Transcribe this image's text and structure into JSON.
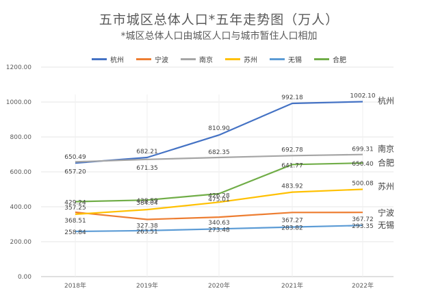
{
  "chart_data": {
    "type": "line",
    "title": "五市城区总体人口*五年走势图（万人）",
    "subtitle": "*城区总体人口由城区人口与城市暂住人口相加",
    "categories": [
      "2018年",
      "2019年",
      "2020年",
      "2021年",
      "2022年"
    ],
    "ylim": [
      0,
      1200
    ],
    "yticks": [
      "0.00",
      "200.00",
      "400.00",
      "600.00",
      "800.00",
      "1000.00",
      "1200.00"
    ],
    "ytick_values": [
      0,
      200,
      400,
      600,
      800,
      1000,
      1200
    ],
    "grid": true,
    "legend_position": "top",
    "series": [
      {
        "name": "杭州",
        "color": "#4472C4",
        "values": [
          650.49,
          682.21,
          810.9,
          992.18,
          1002.1
        ],
        "labels": [
          "650.49",
          "682.21",
          "810.90",
          "992.18",
          "1002.10"
        ],
        "end_label": "杭州"
      },
      {
        "name": "宁波",
        "color": "#ED7D31",
        "values": [
          368.51,
          327.38,
          340.63,
          367.27,
          367.72
        ],
        "labels": [
          "368.51",
          "327.38",
          "340.63",
          "367.27",
          "367.72"
        ],
        "end_label": "宁波"
      },
      {
        "name": "南京",
        "color": "#A5A5A5",
        "values": [
          657.2,
          671.35,
          682.35,
          692.78,
          699.31
        ],
        "labels": [
          "657.20",
          "671.35",
          "682.35",
          "692.78",
          "699.31"
        ],
        "end_label": "南京"
      },
      {
        "name": "苏州",
        "color": "#FFC000",
        "values": [
          357.25,
          384.04,
          426.28,
          483.92,
          500.08
        ],
        "labels": [
          "357.25",
          "384.04",
          "426.28",
          "483.92",
          "500.08"
        ],
        "end_label": "苏州"
      },
      {
        "name": "无锡",
        "color": "#5B9BD5",
        "values": [
          258.84,
          263.51,
          273.48,
          283.82,
          293.35
        ],
        "labels": [
          "258.84",
          "263.51",
          "273.48",
          "283.82",
          "293.35"
        ],
        "end_label": "无锡"
      },
      {
        "name": "合肥",
        "color": "#70AD47",
        "values": [
          429.24,
          438.59,
          475.01,
          641.77,
          650.4
        ],
        "labels": [
          "429.24",
          "438.59",
          "475.01",
          "641.77",
          "650.40"
        ],
        "end_label": "合肥"
      }
    ]
  }
}
